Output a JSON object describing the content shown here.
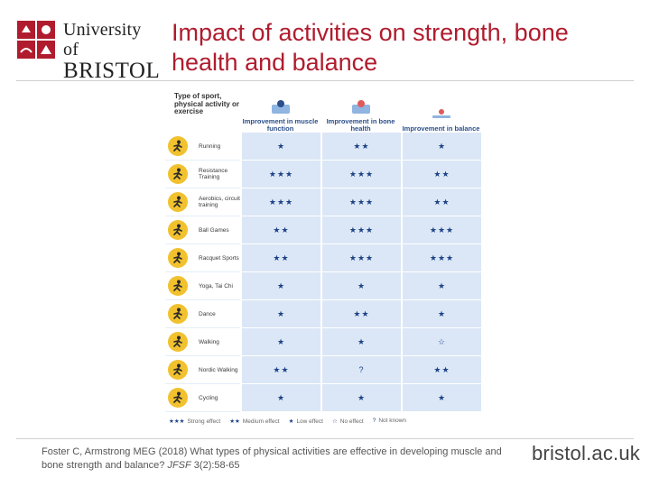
{
  "logo": {
    "line1": "University of",
    "line2": "BRISTOL"
  },
  "title": "Impact of activities on strength, bone health and balance",
  "table": {
    "corner_label": "Type of sport, physical activity or exercise",
    "columns": [
      {
        "label": "Improvement in muscle function",
        "icon": "muscle-icon"
      },
      {
        "label": "Improvement in bone health",
        "icon": "bone-icon"
      },
      {
        "label": "Improvement in balance",
        "icon": "balance-icon"
      }
    ],
    "rows": [
      {
        "activity": "Running",
        "icon": "running-icon",
        "values": [
          "★",
          "★★",
          "★"
        ]
      },
      {
        "activity": "Resistance Training",
        "icon": "weights-icon",
        "values": [
          "★★★",
          "★★★",
          "★★"
        ]
      },
      {
        "activity": "Aerobics, circuit training",
        "icon": "aerobics-icon",
        "values": [
          "★★★",
          "★★★",
          "★★"
        ]
      },
      {
        "activity": "Ball Games",
        "icon": "ball-icon",
        "values": [
          "★★",
          "★★★",
          "★★★"
        ]
      },
      {
        "activity": "Racquet Sports",
        "icon": "racquet-icon",
        "values": [
          "★★",
          "★★★",
          "★★★"
        ]
      },
      {
        "activity": "Yoga, Tai Chi",
        "icon": "yoga-icon",
        "values": [
          "★",
          "★",
          "★"
        ]
      },
      {
        "activity": "Dance",
        "icon": "dance-icon",
        "values": [
          "★",
          "★★",
          "★"
        ]
      },
      {
        "activity": "Walking",
        "icon": "walking-icon",
        "values": [
          "★",
          "★",
          "☆"
        ]
      },
      {
        "activity": "Nordic Walking",
        "icon": "nordic-walking-icon",
        "values": [
          "★★",
          "?",
          "★★"
        ]
      },
      {
        "activity": "Cycling",
        "icon": "cycling-icon",
        "values": [
          "★",
          "★",
          "★"
        ]
      }
    ],
    "legend": [
      {
        "symbol": "★★★",
        "label": "Strong effect"
      },
      {
        "symbol": "★★",
        "label": "Medium effect"
      },
      {
        "symbol": "★",
        "label": "Low effect"
      },
      {
        "symbol": "☆",
        "label": "No effect"
      },
      {
        "symbol": "?",
        "label": "Not known"
      }
    ]
  },
  "citation": {
    "text_before": "Foster C, Armstrong MEG (2018) What types of physical activities are effective in developing muscle and bone strength and balance? ",
    "journal": "JFSF",
    "text_after": " 3(2):58-65"
  },
  "site": "bristol.ac.uk",
  "colors": {
    "title": "#b01c2e",
    "cell_bg": "#dbe7f6",
    "star": "#1d4387",
    "icon_bg": "#f2c12e"
  }
}
